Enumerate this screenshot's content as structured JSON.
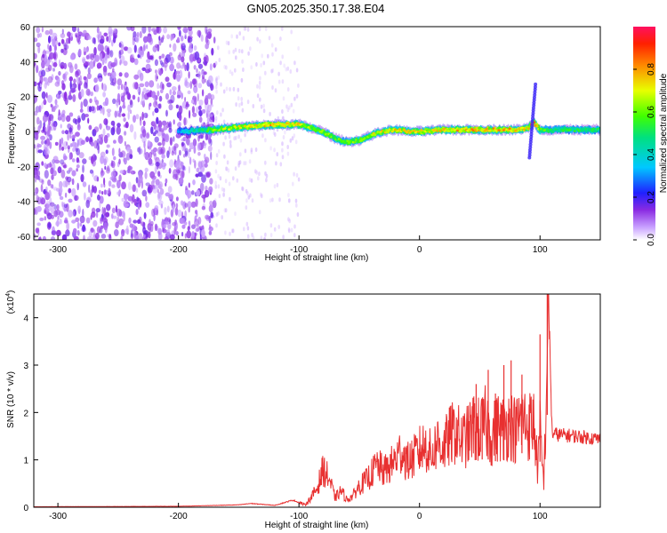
{
  "title": "GN05.2025.350.17.38.E04",
  "chart_data": [
    {
      "type": "heatmap",
      "xlabel": "Height of straight line (km)",
      "ylabel": "Frequency (Hz)",
      "xlim": [
        -320,
        150
      ],
      "ylim": [
        -62,
        60
      ],
      "xticks": [
        -300,
        -200,
        -100,
        0,
        100
      ],
      "yticks": [
        -60,
        -40,
        -20,
        0,
        20,
        40,
        60
      ],
      "colorbar": {
        "label": "Normalized spectral amplitude",
        "range": [
          0,
          1
        ],
        "ticks": [
          0,
          0.2,
          0.4,
          0.6,
          0.8
        ],
        "tick_labels": [
          "0.0",
          "0.2",
          "0.4",
          "0.6",
          "0.8"
        ]
      },
      "ridge": {
        "x": [
          -200,
          -170,
          -140,
          -120,
          -100,
          -90,
          -80,
          -70,
          -60,
          -50,
          -40,
          -30,
          -20,
          -10,
          0,
          20,
          40,
          60,
          80,
          90,
          95,
          100,
          110,
          150
        ],
        "freq": [
          0,
          1,
          3,
          4,
          4,
          2,
          0,
          -4,
          -6,
          -5,
          -2,
          0,
          1,
          0,
          0,
          1,
          1,
          1,
          1,
          2,
          5,
          1,
          1,
          1
        ],
        "amplitude": [
          0.3,
          0.6,
          0.7,
          0.75,
          0.7,
          0.6,
          0.6,
          0.55,
          0.6,
          0.6,
          0.65,
          0.7,
          0.7,
          0.7,
          0.7,
          0.7,
          0.75,
          0.75,
          0.75,
          0.7,
          0.8,
          0.6,
          0.5,
          0.5
        ]
      },
      "noise_region_x": [
        -320,
        -170
      ]
    },
    {
      "type": "line",
      "xlabel": "Height of straight line (km)",
      "ylabel": "SNR (10 * v/v)",
      "scale_label_prefix": "(x10",
      "scale_label_exp": "4",
      "scale_label_suffix": ")",
      "xlim": [
        -320,
        150
      ],
      "ylim": [
        0,
        4.5
      ],
      "xticks": [
        -300,
        -200,
        -100,
        0,
        100
      ],
      "yticks": [
        0,
        1,
        2,
        3,
        4
      ],
      "color": "#e83030",
      "series": [
        {
          "x": [
            -320,
            -200,
            -150,
            -140,
            -120,
            -105,
            -100,
            -95,
            -90,
            -85,
            -80,
            -75,
            -70,
            -65,
            -60,
            -55,
            -50,
            -45,
            -40,
            -35,
            -30,
            -25,
            -20,
            -15,
            -10,
            -5,
            0,
            5,
            10,
            15,
            20,
            25,
            30,
            35,
            40,
            45,
            50,
            55,
            60,
            65,
            70,
            75,
            80,
            85,
            90,
            95,
            98,
            100,
            103,
            105,
            107,
            110,
            120,
            130,
            140,
            150
          ],
          "y": [
            0.01,
            0.02,
            0.05,
            0.08,
            0.04,
            0.15,
            0.1,
            0.05,
            0.2,
            0.4,
            0.8,
            0.6,
            0.2,
            0.35,
            0.15,
            0.25,
            0.45,
            0.55,
            0.7,
            0.9,
            0.75,
            0.85,
            1.0,
            1.2,
            0.95,
            1.05,
            1.2,
            1.3,
            1.1,
            1.4,
            1.25,
            1.5,
            1.6,
            1.4,
            1.5,
            1.7,
            1.6,
            1.8,
            1.5,
            1.7,
            1.65,
            1.8,
            1.6,
            1.9,
            1.7,
            1.8,
            0.8,
            1.6,
            0.5,
            2.0,
            4.5,
            1.55,
            1.52,
            1.5,
            1.47,
            1.44
          ]
        }
      ],
      "spikes": [
        {
          "x": 47,
          "y": 2.6
        },
        {
          "x": 52,
          "y": 2.2
        },
        {
          "x": 57,
          "y": 2.9
        },
        {
          "x": 63,
          "y": 2.4
        },
        {
          "x": 70,
          "y": 3.0
        },
        {
          "x": 76,
          "y": 3.1
        },
        {
          "x": 85,
          "y": 2.8
        },
        {
          "x": 100,
          "y": 3.65
        },
        {
          "x": 106,
          "y": 4.5
        }
      ]
    }
  ]
}
